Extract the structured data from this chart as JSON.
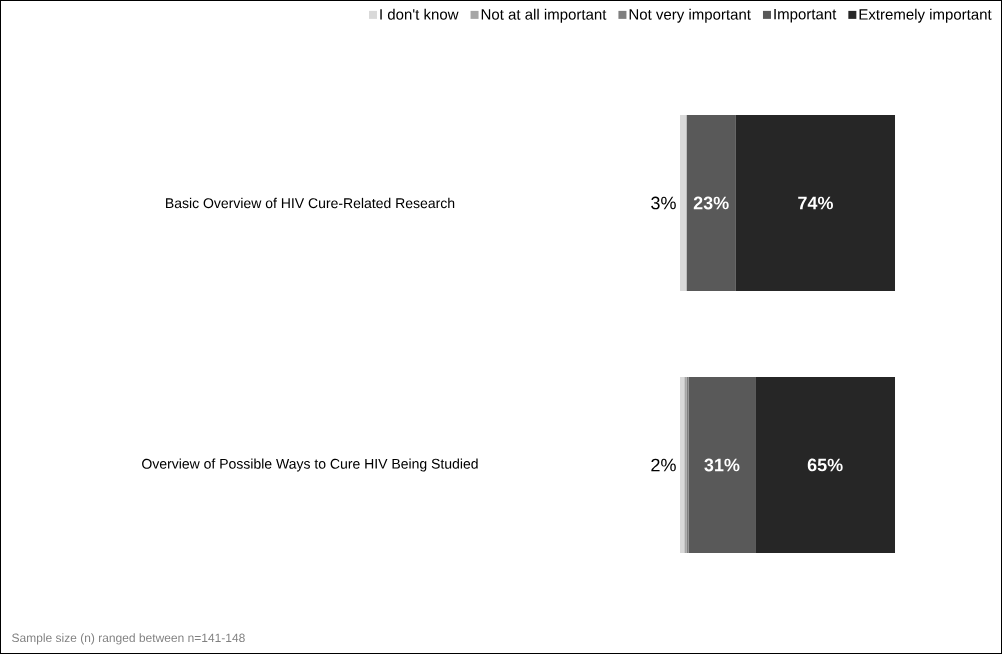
{
  "chart_data": {
    "type": "bar",
    "orientation": "horizontal",
    "stacked": true,
    "categories": [
      "Basic Overview of HIV Cure-Related Research",
      "Overview of Possible Ways to Cure HIV Being Studied"
    ],
    "series": [
      {
        "name": "I don't know",
        "color": "#d9d9d9",
        "values": [
          3,
          2
        ],
        "value_labels": [
          "3%",
          "2%"
        ]
      },
      {
        "name": "Not at all important",
        "color": "#a6a6a6",
        "values": [
          0,
          1
        ],
        "value_labels": [
          null,
          null
        ]
      },
      {
        "name": "Not very important",
        "color": "#7f7f7f",
        "values": [
          0,
          1
        ],
        "value_labels": [
          null,
          null
        ]
      },
      {
        "name": "Important",
        "color": "#595959",
        "values": [
          23,
          31
        ],
        "value_labels": [
          "23%",
          "31%"
        ]
      },
      {
        "name": "Extremely important",
        "color": "#262626",
        "values": [
          74,
          65
        ],
        "value_labels": [
          "74%",
          "65%"
        ]
      }
    ],
    "xlim": [
      0,
      100
    ],
    "tick_labels": false,
    "legend": "top",
    "annotations": [
      "Sample size (n) ranged between n=141-148"
    ]
  }
}
